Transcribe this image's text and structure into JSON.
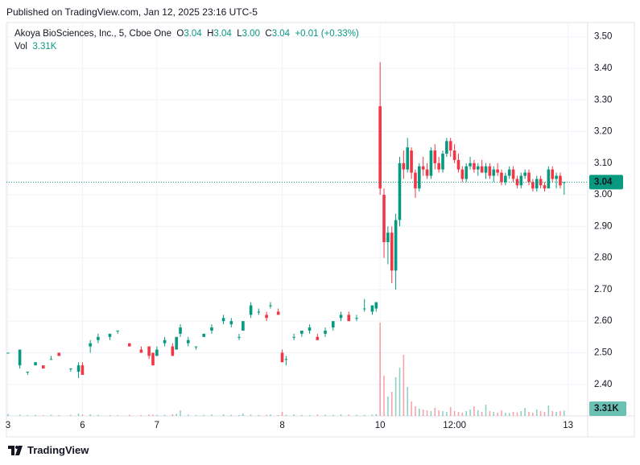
{
  "header": {
    "published": "Published on TradingView.com, Jan 12, 2025 23:16 UTC-5"
  },
  "footer": {
    "brand": "TradingView"
  },
  "chart_data": {
    "type": "candlestick",
    "title": "Akoya BioSciences, Inc., 5, Cboe One",
    "legend": {
      "open_label": "O",
      "open": "3.04",
      "high_label": "H",
      "high": "3.04",
      "low_label": "L",
      "low": "3.00",
      "close_label": "C",
      "close": "3.04",
      "change": "+0.01 (+0.33%)",
      "volume_label": "Vol",
      "volume": "3.31K"
    },
    "colors": {
      "up": "#089981",
      "down": "#f23645"
    },
    "grid": true,
    "x": [
      0,
      3,
      5,
      7,
      9,
      11,
      13,
      16,
      18,
      19,
      21,
      23,
      26,
      28,
      31,
      34,
      36,
      37,
      38,
      40,
      42,
      43,
      44,
      46,
      48,
      50,
      52,
      55,
      57,
      59,
      60,
      62,
      64,
      66,
      67,
      69,
      70,
      71,
      73,
      75,
      77,
      79,
      81,
      83,
      85,
      87,
      89,
      91,
      93,
      94,
      95,
      96,
      97,
      98,
      99,
      100,
      101,
      102,
      103,
      104,
      105,
      106,
      107,
      108,
      109,
      110,
      111,
      112,
      113,
      114,
      115,
      116,
      117,
      118,
      119,
      120,
      121,
      122,
      123,
      124,
      125,
      126,
      127,
      128,
      129,
      130,
      131,
      132,
      133,
      134,
      135,
      136,
      137,
      138,
      139,
      140,
      141,
      142
    ],
    "open": [
      2.5,
      2.46,
      2.44,
      2.46,
      2.46,
      2.48,
      2.5,
      2.45,
      2.44,
      2.46,
      2.52,
      2.54,
      2.55,
      2.57,
      2.53,
      2.51,
      2.52,
      2.5,
      2.49,
      2.53,
      2.52,
      2.51,
      2.56,
      2.53,
      2.52,
      2.55,
      2.57,
      2.6,
      2.59,
      2.55,
      2.57,
      2.62,
      2.63,
      2.62,
      2.65,
      2.63,
      2.5,
      2.48,
      2.55,
      2.56,
      2.57,
      2.55,
      2.56,
      2.58,
      2.61,
      2.62,
      2.61,
      2.64,
      2.63,
      2.64,
      3.28,
      3.0,
      2.85,
      2.88,
      2.76,
      2.92,
      3.1,
      3.08,
      3.14,
      3.07,
      3.02,
      3.09,
      3.08,
      3.06,
      3.14,
      3.1,
      3.08,
      3.13,
      3.17,
      3.14,
      3.11,
      3.08,
      3.05,
      3.09,
      3.1,
      3.08,
      3.09,
      3.07,
      3.09,
      3.06,
      3.08,
      3.07,
      3.04,
      3.06,
      3.08,
      3.05,
      3.03,
      3.06,
      3.07,
      3.04,
      3.02,
      3.05,
      3.03,
      3.02,
      3.08,
      3.05,
      3.06,
      3.04
    ],
    "high": [
      2.5,
      2.51,
      2.44,
      2.47,
      2.46,
      2.49,
      2.5,
      2.45,
      2.47,
      2.47,
      2.54,
      2.56,
      2.56,
      2.57,
      2.53,
      2.52,
      2.52,
      2.5,
      2.52,
      2.55,
      2.53,
      2.55,
      2.59,
      2.55,
      2.52,
      2.56,
      2.59,
      2.62,
      2.61,
      2.56,
      2.6,
      2.66,
      2.64,
      2.63,
      2.66,
      2.64,
      2.51,
      2.49,
      2.56,
      2.57,
      2.59,
      2.56,
      2.58,
      2.6,
      2.63,
      2.63,
      2.62,
      2.67,
      2.65,
      2.66,
      3.42,
      3.02,
      2.9,
      2.9,
      2.94,
      3.12,
      3.14,
      3.18,
      3.15,
      3.08,
      3.1,
      3.12,
      3.1,
      3.15,
      3.16,
      3.12,
      3.14,
      3.18,
      3.18,
      3.16,
      3.13,
      3.09,
      3.1,
      3.12,
      3.11,
      3.1,
      3.11,
      3.1,
      3.1,
      3.09,
      3.1,
      3.08,
      3.07,
      3.09,
      3.09,
      3.06,
      3.07,
      3.08,
      3.08,
      3.05,
      3.06,
      3.06,
      3.04,
      3.09,
      3.09,
      3.07,
      3.07,
      3.04
    ],
    "low": [
      2.5,
      2.45,
      2.43,
      2.46,
      2.45,
      2.48,
      2.49,
      2.44,
      2.42,
      2.43,
      2.5,
      2.53,
      2.54,
      2.56,
      2.52,
      2.5,
      2.48,
      2.46,
      2.49,
      2.52,
      2.49,
      2.51,
      2.55,
      2.52,
      2.51,
      2.55,
      2.56,
      2.59,
      2.58,
      2.54,
      2.57,
      2.61,
      2.62,
      2.6,
      2.64,
      2.62,
      2.47,
      2.46,
      2.54,
      2.55,
      2.56,
      2.54,
      2.55,
      2.57,
      2.6,
      2.6,
      2.6,
      2.63,
      2.62,
      2.63,
      3.0,
      2.8,
      2.78,
      2.72,
      2.7,
      2.9,
      3.05,
      3.07,
      3.05,
      2.99,
      3.01,
      3.06,
      3.05,
      3.05,
      3.08,
      3.07,
      3.07,
      3.12,
      3.12,
      3.1,
      3.07,
      3.04,
      3.04,
      3.08,
      3.07,
      3.06,
      3.07,
      3.05,
      3.05,
      3.04,
      3.06,
      3.03,
      3.03,
      3.05,
      3.04,
      3.02,
      3.02,
      3.05,
      3.03,
      3.01,
      3.01,
      3.02,
      3.01,
      3.02,
      3.04,
      3.02,
      3.02,
      3.0
    ],
    "close": [
      2.5,
      2.51,
      2.44,
      2.47,
      2.45,
      2.48,
      2.49,
      2.45,
      2.46,
      2.43,
      2.53,
      2.55,
      2.56,
      2.57,
      2.52,
      2.5,
      2.49,
      2.46,
      2.51,
      2.54,
      2.49,
      2.55,
      2.58,
      2.54,
      2.52,
      2.56,
      2.58,
      2.61,
      2.6,
      2.55,
      2.6,
      2.65,
      2.63,
      2.61,
      2.65,
      2.62,
      2.47,
      2.48,
      2.55,
      2.57,
      2.58,
      2.54,
      2.57,
      2.6,
      2.62,
      2.6,
      2.61,
      2.64,
      2.65,
      2.66,
      3.02,
      2.85,
      2.88,
      2.76,
      2.92,
      3.1,
      3.08,
      3.15,
      3.07,
      3.02,
      3.09,
      3.08,
      3.06,
      3.14,
      3.1,
      3.08,
      3.13,
      3.17,
      3.14,
      3.11,
      3.08,
      3.05,
      3.09,
      3.1,
      3.08,
      3.09,
      3.07,
      3.09,
      3.06,
      3.08,
      3.07,
      3.04,
      3.06,
      3.08,
      3.05,
      3.03,
      3.06,
      3.07,
      3.04,
      3.02,
      3.05,
      3.03,
      3.02,
      3.08,
      3.05,
      3.06,
      3.03,
      3.04
    ],
    "volume": [
      1200,
      800,
      500,
      600,
      400,
      700,
      500,
      600,
      1500,
      900,
      1000,
      600,
      500,
      400,
      700,
      500,
      900,
      800,
      600,
      700,
      1100,
      1300,
      3500,
      800,
      500,
      600,
      900,
      1000,
      700,
      600,
      1500,
      800,
      600,
      700,
      900,
      500,
      2500,
      700,
      900,
      600,
      500,
      800,
      700,
      600,
      1000,
      900,
      700,
      600,
      800,
      1200,
      58000,
      25000,
      12000,
      15000,
      24000,
      30000,
      38000,
      18000,
      9000,
      6000,
      4500,
      4000,
      3500,
      3000,
      5000,
      3500,
      3000,
      2500,
      5500,
      3000,
      2500,
      2000,
      3000,
      4000,
      6000,
      3500,
      2500,
      7000,
      3000,
      2500,
      2000,
      3500,
      2000,
      1800,
      2500,
      2200,
      3000,
      5000,
      2500,
      2000,
      4000,
      3000,
      2500,
      6500,
      3000,
      2500,
      3000,
      3310
    ],
    "xlim": [
      0,
      148
    ],
    "xticks": [
      {
        "value": 0,
        "label": "3"
      },
      {
        "value": 19,
        "label": "6"
      },
      {
        "value": 38,
        "label": "7"
      },
      {
        "value": 70,
        "label": "8"
      },
      {
        "value": 95,
        "label": "10"
      },
      {
        "value": 114,
        "label": "12:00"
      },
      {
        "value": 143,
        "label": "13"
      }
    ],
    "ylim": [
      2.3,
      3.54
    ],
    "yticks": [
      {
        "value": 2.4,
        "label": "2.40"
      },
      {
        "value": 2.5,
        "label": "2.50"
      },
      {
        "value": 2.6,
        "label": "2.60"
      },
      {
        "value": 2.7,
        "label": "2.70"
      },
      {
        "value": 2.8,
        "label": "2.80"
      },
      {
        "value": 2.9,
        "label": "2.90"
      },
      {
        "value": 3.0,
        "label": "3.00"
      },
      {
        "value": 3.1,
        "label": "3.10"
      },
      {
        "value": 3.2,
        "label": "3.20"
      },
      {
        "value": 3.3,
        "label": "3.30"
      },
      {
        "value": 3.4,
        "label": "3.40"
      },
      {
        "value": 3.5,
        "label": "3.50"
      }
    ],
    "y2lim": [
      0,
      80000
    ],
    "last_price": {
      "value": 3.04,
      "label": "3.04"
    },
    "last_volume": {
      "value": 3310,
      "label": "3.31K"
    }
  }
}
